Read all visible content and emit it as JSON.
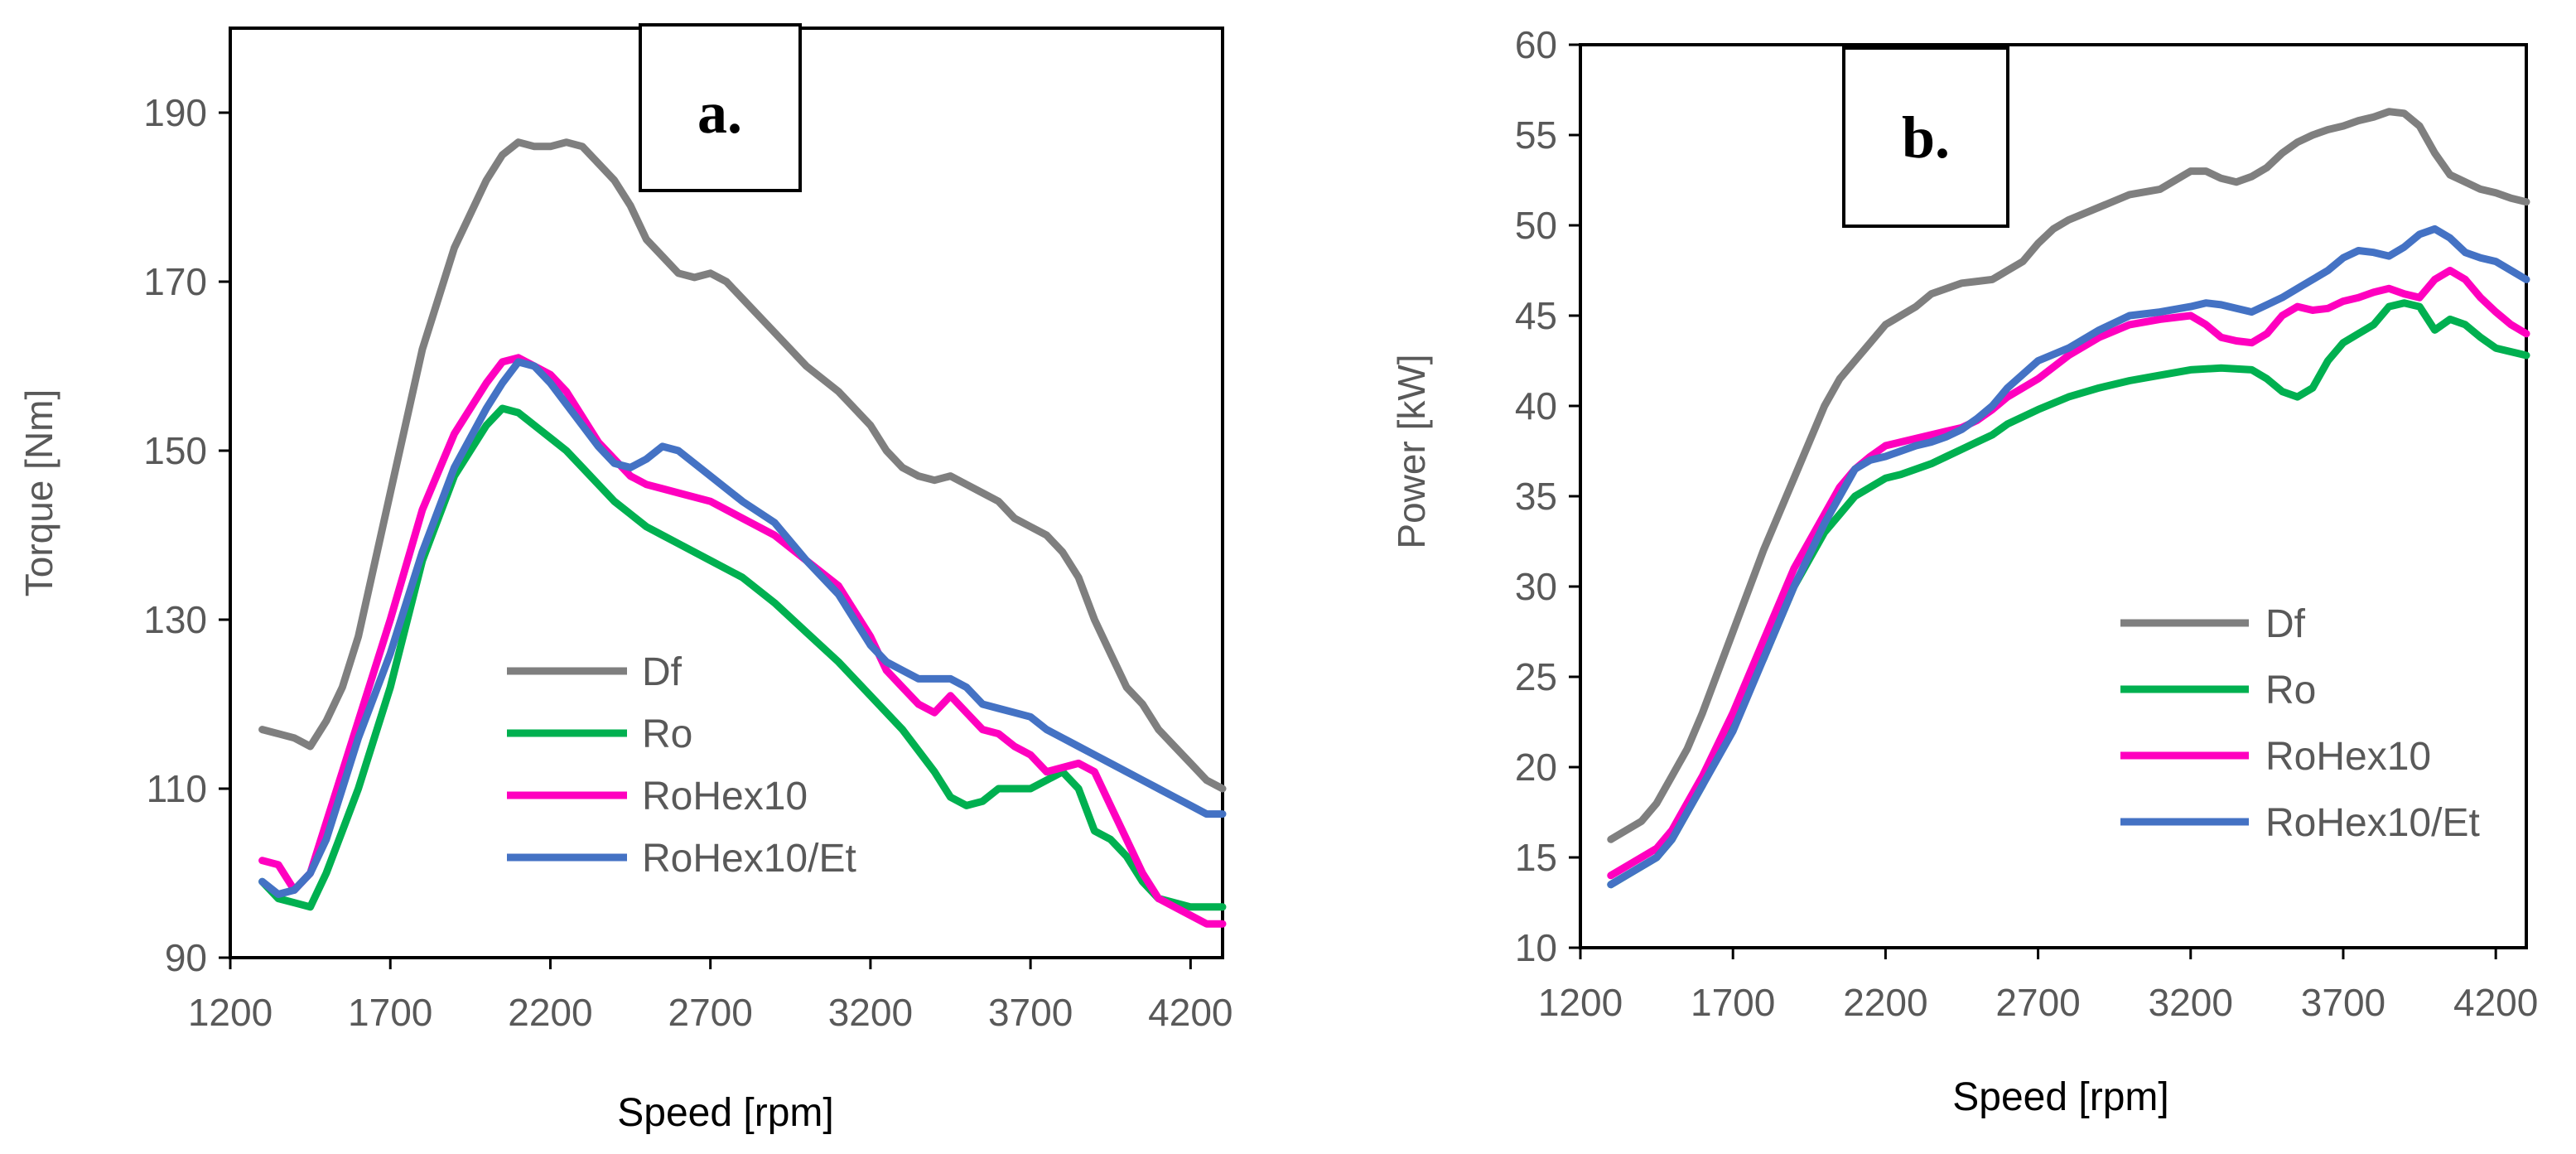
{
  "chart_data": [
    {
      "type": "line",
      "panel_label": "a.",
      "title": "",
      "xlabel": "Speed [rpm]",
      "ylabel": "Torque [Nm]",
      "xlim": [
        1200,
        4300
      ],
      "ylim": [
        90,
        200
      ],
      "xticks": [
        1200,
        1700,
        2200,
        2700,
        3200,
        3700,
        4200
      ],
      "yticks": [
        90,
        110,
        130,
        150,
        170,
        190
      ],
      "grid": false,
      "legend_position": "lower-center",
      "series": [
        {
          "name": "Df",
          "color": "#7f7f7f",
          "x": [
            1300,
            1350,
            1400,
            1450,
            1500,
            1550,
            1600,
            1700,
            1800,
            1900,
            2000,
            2050,
            2100,
            2150,
            2200,
            2250,
            2300,
            2350,
            2400,
            2450,
            2500,
            2550,
            2600,
            2650,
            2700,
            2750,
            2800,
            2900,
            3000,
            3100,
            3200,
            3250,
            3300,
            3350,
            3400,
            3450,
            3500,
            3550,
            3600,
            3650,
            3700,
            3750,
            3800,
            3850,
            3900,
            3950,
            4000,
            4050,
            4100,
            4150,
            4200,
            4250,
            4300
          ],
          "y": [
            117,
            116.5,
            116,
            115,
            118,
            122,
            128,
            145,
            162,
            174,
            182,
            185,
            186.5,
            186,
            186,
            186.5,
            186,
            184,
            182,
            179,
            175,
            173,
            171,
            170.5,
            171,
            170,
            168,
            164,
            160,
            157,
            153,
            150,
            148,
            147,
            146.5,
            147,
            146,
            145,
            144,
            142,
            141,
            140,
            138,
            135,
            130,
            126,
            122,
            120,
            117,
            115,
            113,
            111,
            110
          ]
        },
        {
          "name": "Ro",
          "color": "#00b050",
          "x": [
            1300,
            1350,
            1400,
            1450,
            1500,
            1550,
            1600,
            1700,
            1800,
            1900,
            2000,
            2050,
            2100,
            2150,
            2200,
            2250,
            2300,
            2350,
            2400,
            2450,
            2500,
            2550,
            2600,
            2700,
            2800,
            2900,
            3000,
            3100,
            3200,
            3300,
            3400,
            3450,
            3500,
            3550,
            3600,
            3650,
            3700,
            3750,
            3800,
            3850,
            3900,
            3950,
            4000,
            4050,
            4100,
            4150,
            4200,
            4250,
            4300
          ],
          "y": [
            99,
            97,
            96.5,
            96,
            100,
            105,
            110,
            122,
            137,
            147,
            153,
            155,
            154.5,
            153,
            151.5,
            150,
            148,
            146,
            144,
            142.5,
            141,
            140,
            139,
            137,
            135,
            132,
            128.5,
            125,
            121,
            117,
            112,
            109,
            108,
            108.5,
            110,
            110,
            110,
            111,
            112,
            110,
            105,
            104,
            102,
            99,
            97,
            96.5,
            96,
            96,
            96
          ]
        },
        {
          "name": "RoHex10",
          "color": "#ff00bf",
          "x": [
            1300,
            1350,
            1400,
            1450,
            1500,
            1550,
            1600,
            1700,
            1800,
            1900,
            2000,
            2050,
            2100,
            2150,
            2200,
            2250,
            2300,
            2350,
            2400,
            2450,
            2500,
            2550,
            2600,
            2700,
            2800,
            2900,
            3000,
            3100,
            3200,
            3250,
            3300,
            3350,
            3400,
            3450,
            3500,
            3550,
            3600,
            3650,
            3700,
            3750,
            3800,
            3850,
            3900,
            3950,
            4000,
            4050,
            4100,
            4150,
            4200,
            4250,
            4300
          ],
          "y": [
            101.5,
            101,
            98,
            100,
            106,
            112,
            118,
            130,
            143,
            152,
            158,
            160.5,
            161,
            160,
            159,
            157,
            154,
            151,
            149,
            147,
            146,
            145.5,
            145,
            144,
            142,
            140,
            137,
            134,
            128,
            124,
            122,
            120,
            119,
            121,
            119,
            117,
            116.5,
            115,
            114,
            112,
            112.5,
            113,
            112,
            108,
            104,
            100,
            97,
            96,
            95,
            94,
            94
          ]
        },
        {
          "name": "RoHex10/Et",
          "color": "#4472c4",
          "x": [
            1300,
            1350,
            1400,
            1450,
            1500,
            1550,
            1600,
            1700,
            1800,
            1900,
            2000,
            2050,
            2100,
            2150,
            2200,
            2250,
            2300,
            2350,
            2400,
            2450,
            2500,
            2550,
            2600,
            2700,
            2800,
            2900,
            3000,
            3100,
            3200,
            3250,
            3300,
            3350,
            3400,
            3450,
            3500,
            3550,
            3600,
            3650,
            3700,
            3750,
            3800,
            3850,
            3900,
            3950,
            4000,
            4050,
            4100,
            4150,
            4200,
            4250,
            4300
          ],
          "y": [
            99,
            97.5,
            98,
            100,
            104,
            110,
            116,
            126,
            138,
            148,
            155,
            158,
            160.5,
            160,
            158,
            155.5,
            153,
            150.5,
            148.5,
            148,
            149,
            150.5,
            150,
            147,
            144,
            141.5,
            137,
            133,
            127,
            125,
            124,
            123,
            123,
            123,
            122,
            120,
            119.5,
            119,
            118.5,
            117,
            116,
            115,
            114,
            113,
            112,
            111,
            110,
            109,
            108,
            107,
            107
          ]
        }
      ],
      "legend": [
        "Df",
        "Ro",
        "RoHex10",
        "RoHex10/Et"
      ]
    },
    {
      "type": "line",
      "panel_label": "b.",
      "title": "",
      "xlabel": "Speed [rpm]",
      "ylabel": "Power [kW]",
      "xlim": [
        1200,
        4300
      ],
      "ylim": [
        10,
        60
      ],
      "xticks": [
        1200,
        1700,
        2200,
        2700,
        3200,
        3700,
        4200
      ],
      "yticks": [
        10,
        15,
        20,
        25,
        30,
        35,
        40,
        45,
        50,
        55,
        60
      ],
      "grid": false,
      "legend_position": "lower-right",
      "series": [
        {
          "name": "Df",
          "color": "#7f7f7f",
          "x": [
            1300,
            1350,
            1400,
            1450,
            1500,
            1550,
            1600,
            1700,
            1800,
            1900,
            2000,
            2050,
            2100,
            2150,
            2200,
            2250,
            2300,
            2350,
            2400,
            2450,
            2500,
            2550,
            2600,
            2650,
            2700,
            2750,
            2800,
            2900,
            3000,
            3100,
            3200,
            3250,
            3300,
            3350,
            3400,
            3450,
            3500,
            3550,
            3600,
            3650,
            3700,
            3750,
            3800,
            3850,
            3900,
            3950,
            4000,
            4050,
            4100,
            4150,
            4200,
            4250,
            4300
          ],
          "y": [
            16,
            16.5,
            17,
            18,
            19.5,
            21,
            23,
            27.5,
            32,
            36,
            40,
            41.5,
            42.5,
            43.5,
            44.5,
            45,
            45.5,
            46.2,
            46.5,
            46.8,
            46.9,
            47,
            47.5,
            48,
            49,
            49.8,
            50.3,
            51,
            51.7,
            52,
            53,
            53,
            52.6,
            52.4,
            52.7,
            53.2,
            54,
            54.6,
            55,
            55.3,
            55.5,
            55.8,
            56,
            56.3,
            56.2,
            55.5,
            54,
            52.8,
            52.4,
            52,
            51.8,
            51.5,
            51.3
          ]
        },
        {
          "name": "Ro",
          "color": "#00b050",
          "x": [
            1300,
            1350,
            1400,
            1450,
            1500,
            1550,
            1600,
            1700,
            1800,
            1900,
            2000,
            2050,
            2100,
            2150,
            2200,
            2250,
            2300,
            2350,
            2400,
            2450,
            2500,
            2550,
            2600,
            2700,
            2800,
            2900,
            3000,
            3100,
            3200,
            3300,
            3400,
            3450,
            3500,
            3550,
            3600,
            3650,
            3700,
            3750,
            3800,
            3850,
            3900,
            3950,
            4000,
            4050,
            4100,
            4150,
            4200,
            4250,
            4300
          ],
          "y": [
            13.5,
            14,
            14.5,
            15,
            16,
            17.5,
            19,
            22.5,
            26,
            30,
            33,
            34,
            35,
            35.5,
            36,
            36.2,
            36.5,
            36.8,
            37.2,
            37.6,
            38,
            38.4,
            39,
            39.8,
            40.5,
            41,
            41.4,
            41.7,
            42,
            42.1,
            42,
            41.5,
            40.8,
            40.5,
            41,
            42.5,
            43.5,
            44,
            44.5,
            45.5,
            45.7,
            45.5,
            44.2,
            44.8,
            44.5,
            43.8,
            43.2,
            43,
            42.8
          ]
        },
        {
          "name": "RoHex10",
          "color": "#ff00bf",
          "x": [
            1300,
            1350,
            1400,
            1450,
            1500,
            1550,
            1600,
            1700,
            1800,
            1900,
            2000,
            2050,
            2100,
            2150,
            2200,
            2250,
            2300,
            2350,
            2400,
            2450,
            2500,
            2550,
            2600,
            2700,
            2800,
            2900,
            3000,
            3100,
            3200,
            3250,
            3300,
            3350,
            3400,
            3450,
            3500,
            3550,
            3600,
            3650,
            3700,
            3750,
            3800,
            3850,
            3900,
            3950,
            4000,
            4050,
            4100,
            4150,
            4200,
            4250,
            4300
          ],
          "y": [
            14,
            14.5,
            15,
            15.5,
            16.5,
            18,
            19.5,
            23,
            27,
            31,
            34,
            35.5,
            36.5,
            37.2,
            37.8,
            38,
            38.2,
            38.4,
            38.6,
            38.8,
            39.2,
            39.8,
            40.5,
            41.5,
            42.8,
            43.8,
            44.5,
            44.8,
            45,
            44.5,
            43.8,
            43.6,
            43.5,
            44,
            45,
            45.5,
            45.3,
            45.4,
            45.8,
            46,
            46.3,
            46.5,
            46.2,
            46,
            47,
            47.5,
            47,
            46,
            45.2,
            44.5,
            44
          ]
        },
        {
          "name": "RoHex10/Et",
          "color": "#4472c4",
          "x": [
            1300,
            1350,
            1400,
            1450,
            1500,
            1550,
            1600,
            1700,
            1800,
            1900,
            2000,
            2050,
            2100,
            2150,
            2200,
            2250,
            2300,
            2350,
            2400,
            2450,
            2500,
            2550,
            2600,
            2700,
            2800,
            2900,
            3000,
            3100,
            3200,
            3250,
            3300,
            3350,
            3400,
            3450,
            3500,
            3550,
            3600,
            3650,
            3700,
            3750,
            3800,
            3850,
            3900,
            3950,
            4000,
            4050,
            4100,
            4150,
            4200,
            4250,
            4300
          ],
          "y": [
            13.5,
            14,
            14.5,
            15,
            16,
            17.5,
            19,
            22,
            26,
            30,
            33.5,
            35,
            36.5,
            37,
            37.2,
            37.5,
            37.8,
            38,
            38.3,
            38.7,
            39.3,
            40,
            41,
            42.5,
            43.2,
            44.2,
            45,
            45.2,
            45.5,
            45.7,
            45.6,
            45.4,
            45.2,
            45.6,
            46,
            46.5,
            47,
            47.5,
            48.2,
            48.6,
            48.5,
            48.3,
            48.8,
            49.5,
            49.8,
            49.3,
            48.5,
            48.2,
            48,
            47.5,
            47
          ]
        }
      ],
      "legend": [
        "Df",
        "Ro",
        "RoHex10",
        "RoHex10/Et"
      ]
    }
  ]
}
